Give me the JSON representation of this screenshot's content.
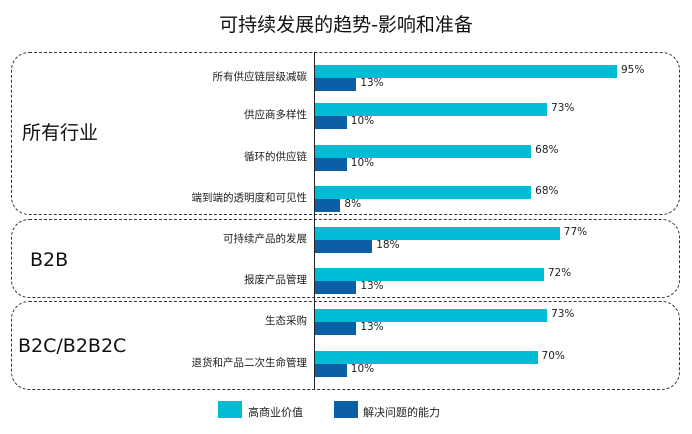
{
  "title": "可持续发展的趋势-影响和准备",
  "colors": {
    "series1": "#00bcd4",
    "series2": "#0a5fa5"
  },
  "chart_data": {
    "type": "bar",
    "orientation": "horizontal",
    "xlim": [
      0,
      100
    ],
    "value_suffix": "%",
    "series": [
      {
        "name": "高商业价值",
        "color": "#00bcd4"
      },
      {
        "name": "解决问题的能力",
        "color": "#0a5fa5"
      }
    ],
    "groups": [
      {
        "label": "所有行业",
        "items": [
          {
            "category": "所有供应链层级减碳",
            "values": [
              95,
              13
            ]
          },
          {
            "category": "供应商多样性",
            "values": [
              73,
              10
            ]
          },
          {
            "category": "循环的供应链",
            "values": [
              68,
              10
            ]
          },
          {
            "category": "端到端的透明度和可见性",
            "values": [
              68,
              8
            ]
          }
        ]
      },
      {
        "label": "B2B",
        "items": [
          {
            "category": "可持续产品的发展",
            "values": [
              77,
              18
            ]
          },
          {
            "category": "报废产品管理",
            "values": [
              72,
              13
            ]
          }
        ]
      },
      {
        "label": "B2C/B2B2C",
        "items": [
          {
            "category": "生态采购",
            "values": [
              73,
              13
            ]
          },
          {
            "category": "退货和产品二次生命管理",
            "values": [
              70,
              10
            ]
          }
        ]
      }
    ]
  }
}
